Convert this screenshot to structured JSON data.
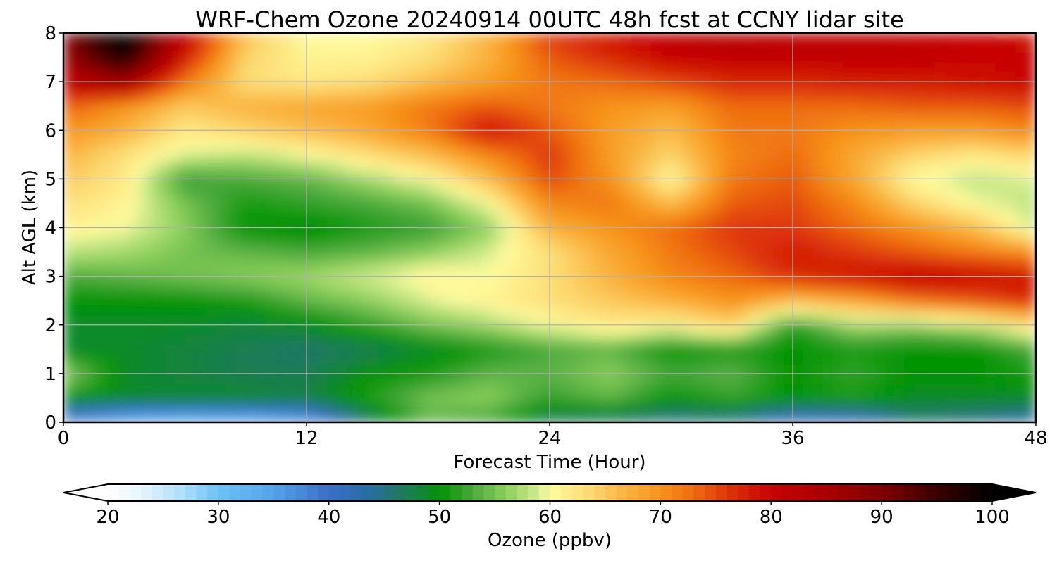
{
  "chart_data": {
    "type": "heatmap",
    "title": "WRF-Chem Ozone  20240914 00UTC 48h fcst at CCNY lidar site",
    "xlabel": "Forecast Time (Hour)",
    "ylabel": "Alt AGL (km)",
    "xlim": [
      0,
      48
    ],
    "ylim": [
      0,
      8
    ],
    "xticks": [
      0,
      12,
      24,
      36,
      48
    ],
    "yticks": [
      0,
      1,
      2,
      3,
      4,
      5,
      6,
      7,
      8
    ],
    "grid": true,
    "x_hours": [
      0,
      3,
      6,
      9,
      12,
      15,
      18,
      21,
      24,
      27,
      30,
      33,
      36,
      39,
      42,
      45,
      48
    ],
    "y_km": [
      0,
      0.5,
      1,
      1.5,
      2,
      2.5,
      3,
      3.5,
      4,
      4.5,
      5,
      5.5,
      6,
      6.5,
      7,
      7.5,
      8
    ],
    "ozone_ppbv": [
      [
        36,
        32,
        30,
        31,
        34,
        46,
        54,
        52,
        46,
        45,
        44,
        44,
        39,
        39,
        45,
        44,
        42
      ],
      [
        50,
        49,
        49,
        49,
        48,
        51,
        55,
        56,
        52,
        54,
        50,
        52,
        50,
        51,
        49,
        49,
        49
      ],
      [
        57,
        49,
        48,
        47,
        47,
        50,
        51,
        54,
        54,
        56,
        53,
        54,
        50,
        52,
        50,
        50,
        51
      ],
      [
        49,
        49,
        48,
        47,
        46,
        47,
        49,
        51,
        53,
        54,
        50,
        51,
        50,
        51,
        50,
        50,
        53
      ],
      [
        49,
        49,
        49,
        48,
        49,
        52,
        55,
        57,
        60,
        62,
        61,
        64,
        51,
        57,
        56,
        58,
        63
      ],
      [
        50,
        50,
        50,
        51,
        54,
        56,
        59,
        61,
        63,
        65,
        67,
        70,
        66,
        68,
        72,
        74,
        77
      ],
      [
        53,
        54,
        55,
        56,
        57,
        59,
        61,
        60,
        63,
        67,
        71,
        73,
        77,
        79,
        81,
        80,
        79
      ],
      [
        58,
        57,
        55,
        54,
        53,
        54,
        56,
        59,
        63,
        68,
        72,
        75,
        78,
        76,
        74,
        72,
        70
      ],
      [
        61,
        60,
        56,
        50,
        49,
        51,
        52,
        56,
        67,
        70,
        73,
        76,
        76,
        73,
        70,
        66,
        58
      ],
      [
        63,
        61,
        55,
        51,
        52,
        53,
        55,
        60,
        71,
        72,
        66,
        74,
        75,
        71,
        64,
        60,
        58
      ],
      [
        65,
        62,
        52,
        53,
        54,
        57,
        60,
        66,
        75,
        70,
        60,
        72,
        74,
        68,
        60,
        58,
        59
      ],
      [
        67,
        63,
        59,
        58,
        60,
        63,
        66,
        71,
        76,
        69,
        64,
        71,
        73,
        68,
        64,
        62,
        64
      ],
      [
        70,
        67,
        62,
        64,
        66,
        68,
        72,
        79,
        74,
        69,
        66,
        72,
        72,
        70,
        69,
        69,
        71
      ],
      [
        74,
        70,
        65,
        67,
        68,
        69,
        72,
        74,
        72,
        70,
        69,
        73,
        73,
        73,
        74,
        74,
        75
      ],
      [
        82,
        86,
        72,
        63,
        62,
        63,
        66,
        69,
        72,
        73,
        75,
        77,
        77,
        78,
        78,
        79,
        80
      ],
      [
        87,
        98,
        78,
        64,
        61,
        61,
        63,
        67,
        74,
        77,
        80,
        81,
        81,
        81,
        81,
        80,
        80
      ],
      [
        90,
        102,
        82,
        66,
        60,
        60,
        62,
        67,
        76,
        79,
        82,
        83,
        82,
        82,
        81,
        80,
        79
      ]
    ],
    "colorbar": {
      "label": "Ozone  (ppbv)",
      "min": 20,
      "max": 100,
      "ticks": [
        20,
        30,
        40,
        50,
        60,
        70,
        80,
        90,
        100
      ],
      "extend": "both",
      "colors": [
        {
          "value": 20,
          "color": "#ffffff"
        },
        {
          "value": 23,
          "color": "#e6f5ff"
        },
        {
          "value": 27,
          "color": "#aadcf8"
        },
        {
          "value": 30,
          "color": "#6cc3f5"
        },
        {
          "value": 35,
          "color": "#53a3ea"
        },
        {
          "value": 40,
          "color": "#3a6fc6"
        },
        {
          "value": 43,
          "color": "#2a6cac"
        },
        {
          "value": 46,
          "color": "#22766a"
        },
        {
          "value": 49,
          "color": "#0d8a2a"
        },
        {
          "value": 50,
          "color": "#009400"
        },
        {
          "value": 53,
          "color": "#4aa83c"
        },
        {
          "value": 56,
          "color": "#8ccf5c"
        },
        {
          "value": 59,
          "color": "#d4ec8e"
        },
        {
          "value": 60,
          "color": "#fffc9e"
        },
        {
          "value": 64,
          "color": "#fcd56c"
        },
        {
          "value": 67,
          "color": "#f9b13d"
        },
        {
          "value": 70,
          "color": "#f7941a"
        },
        {
          "value": 73,
          "color": "#ee6c10"
        },
        {
          "value": 76,
          "color": "#dd3608"
        },
        {
          "value": 80,
          "color": "#c70303"
        },
        {
          "value": 85,
          "color": "#aa0000"
        },
        {
          "value": 90,
          "color": "#800000"
        },
        {
          "value": 95,
          "color": "#3a0000"
        },
        {
          "value": 100,
          "color": "#000000"
        }
      ]
    }
  }
}
